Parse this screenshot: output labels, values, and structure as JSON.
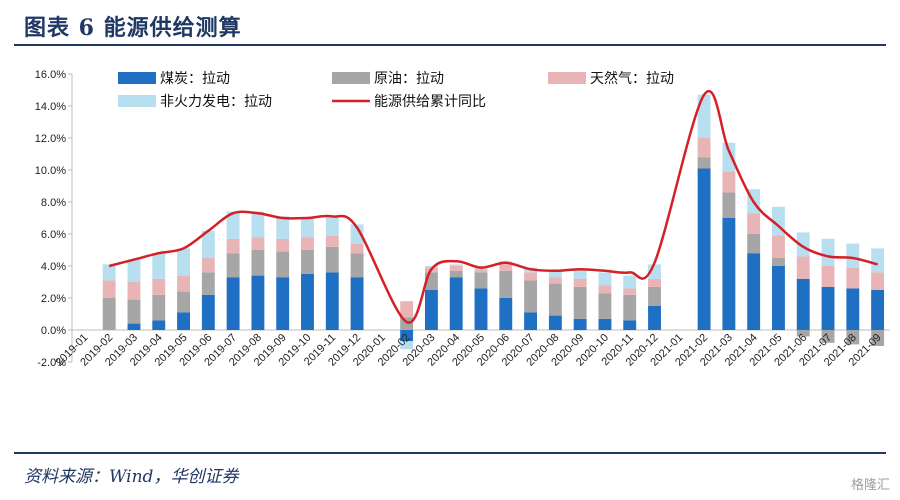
{
  "header": {
    "title": "图表 6    能源供给测算"
  },
  "footer": {
    "source": "资料来源：Wind，华创证券",
    "watermark": "格隆汇"
  },
  "colors": {
    "coal": "#1f6fc2",
    "oil": "#a6a6a6",
    "gas": "#e8b4b6",
    "nonthermal": "#b8dff0",
    "line": "#d61f26",
    "axis": "#bdbdbd"
  },
  "chart_data": {
    "type": "bar",
    "stacked": true,
    "ylim": [
      -2.0,
      16.0
    ],
    "yticks": [
      "-2.0%",
      "0.0%",
      "2.0%",
      "4.0%",
      "6.0%",
      "8.0%",
      "10.0%",
      "12.0%",
      "14.0%",
      "16.0%"
    ],
    "categories": [
      "2019-01",
      "2019-02",
      "2019-03",
      "2019-04",
      "2019-05",
      "2019-06",
      "2019-07",
      "2019-08",
      "2019-09",
      "2019-10",
      "2019-11",
      "2019-12",
      "2020-01",
      "2020-02",
      "2020-03",
      "2020-04",
      "2020-05",
      "2020-06",
      "2020-07",
      "2020-08",
      "2020-09",
      "2020-10",
      "2020-11",
      "2020-12",
      "2021-01",
      "2021-02",
      "2021-03",
      "2021-04",
      "2021-05",
      "2021-06",
      "2021-07",
      "2021-08",
      "2021-09"
    ],
    "series": [
      {
        "name": "煤炭：拉动",
        "kind": "bar",
        "color": "#1f6fc2",
        "values": [
          null,
          0.0,
          0.4,
          0.6,
          1.1,
          2.2,
          3.3,
          3.4,
          3.3,
          3.5,
          3.6,
          3.3,
          null,
          -0.7,
          2.5,
          3.3,
          2.6,
          2.0,
          1.1,
          0.9,
          0.7,
          0.7,
          0.6,
          1.5,
          null,
          10.1,
          7.0,
          4.8,
          4.0,
          3.2,
          2.7,
          2.6,
          2.5
        ]
      },
      {
        "name": "原油：拉动",
        "kind": "bar",
        "color": "#a6a6a6",
        "values": [
          null,
          2.0,
          1.5,
          1.6,
          1.3,
          1.4,
          1.5,
          1.6,
          1.6,
          1.5,
          1.6,
          1.5,
          null,
          0.8,
          1.1,
          0.4,
          1.0,
          1.7,
          2.0,
          2.0,
          2.0,
          1.6,
          1.6,
          1.2,
          null,
          0.7,
          1.6,
          1.2,
          0.5,
          -0.4,
          -0.8,
          -0.9,
          -1.0
        ]
      },
      {
        "name": "天然气：拉动",
        "kind": "bar",
        "color": "#e8b4b6",
        "values": [
          null,
          1.1,
          1.1,
          1.0,
          1.0,
          0.9,
          0.9,
          0.8,
          0.8,
          0.8,
          0.7,
          0.6,
          null,
          1.0,
          0.3,
          0.3,
          0.2,
          0.4,
          0.5,
          0.4,
          0.5,
          0.5,
          0.4,
          0.5,
          null,
          1.2,
          1.3,
          1.3,
          1.4,
          1.4,
          1.3,
          1.3,
          1.1
        ]
      },
      {
        "name": "非火力发电：拉动",
        "kind": "bar",
        "color": "#b8dff0",
        "values": [
          null,
          1.0,
          1.4,
          1.6,
          1.7,
          1.7,
          1.7,
          1.6,
          1.4,
          1.2,
          1.2,
          1.2,
          null,
          -0.5,
          0.1,
          0.1,
          0.1,
          0.2,
          0.3,
          0.4,
          0.6,
          0.8,
          0.8,
          0.9,
          null,
          2.7,
          1.8,
          1.5,
          1.8,
          1.5,
          1.7,
          1.5,
          1.5
        ]
      },
      {
        "name": "能源供给累计同比",
        "kind": "line",
        "color": "#d61f26",
        "values": [
          null,
          4.0,
          4.4,
          4.8,
          5.1,
          6.2,
          7.3,
          7.3,
          7.0,
          7.0,
          7.1,
          6.4,
          null,
          0.5,
          3.8,
          4.3,
          3.9,
          4.2,
          3.8,
          3.7,
          3.8,
          3.7,
          3.6,
          4.2,
          null,
          14.7,
          11.2,
          8.0,
          6.5,
          5.2,
          4.6,
          4.5,
          4.1
        ]
      }
    ],
    "legend": "top-left, in plot area"
  }
}
